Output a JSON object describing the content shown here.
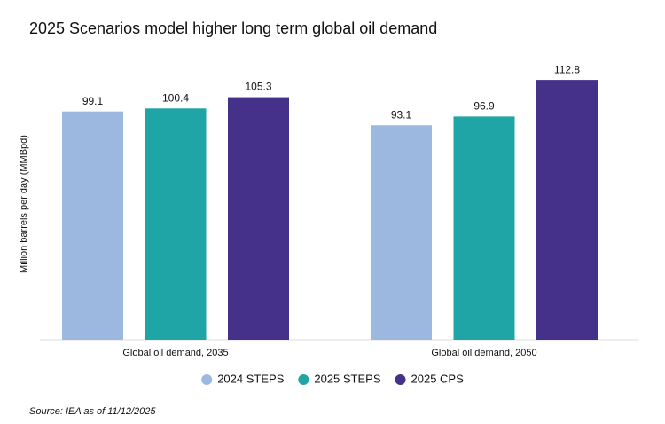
{
  "chart_data": {
    "type": "bar",
    "title": "2025 Scenarios model higher long term global oil demand",
    "y_label": "Million barrels per day (MMBpd)",
    "categories": [
      "Global oil demand, 2035",
      "Global oil demand, 2050"
    ],
    "series": [
      {
        "name": "2024 STEPS",
        "color": "#9db8e0",
        "values": [
          99.1,
          93.1
        ]
      },
      {
        "name": "2025 STEPS",
        "color": "#1fa5a5",
        "values": [
          100.4,
          96.9
        ]
      },
      {
        "name": "2025 CPS",
        "color": "#45318a",
        "values": [
          105.3,
          112.8
        ]
      }
    ],
    "ylim": [
      0,
      120
    ],
    "source": "Source: IEA as of 11/12/2025"
  }
}
